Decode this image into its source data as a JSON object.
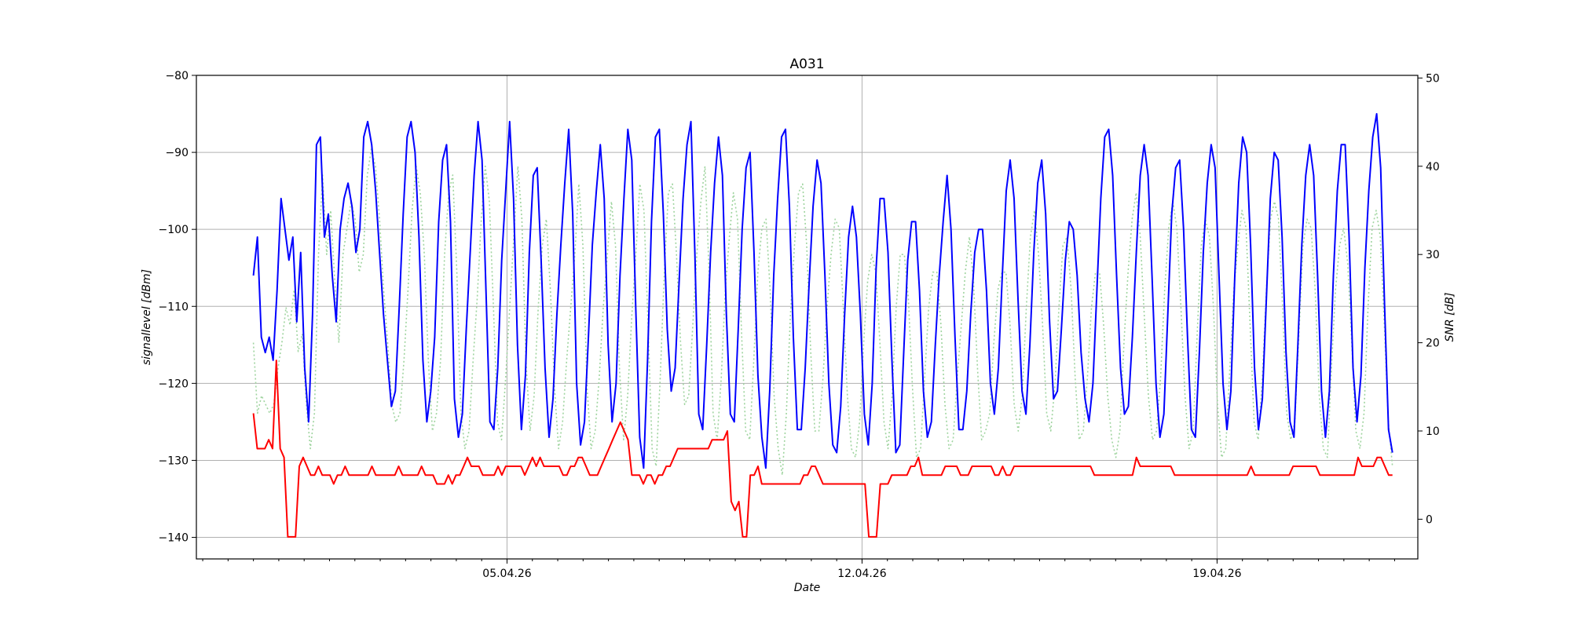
{
  "chart_data": {
    "type": "line",
    "title": "A031",
    "xlabel": "Date",
    "ylabel": "signallevel [dBm]",
    "y2label": "SNR [dB]",
    "x_start": "2026-03-31T00:00",
    "x_end": "2026-04-22T11:00",
    "xlim": [
      "2026-03-29T21:00",
      "2026-04-22T23:00"
    ],
    "x_ticks": [
      {
        "date": "2026-04-05",
        "label": "05.04.26"
      },
      {
        "date": "2026-04-12",
        "label": "12.04.26"
      },
      {
        "date": "2026-04-19",
        "label": "19.04.26"
      }
    ],
    "ylim": [
      -142.8,
      -80
    ],
    "y_ticks": [
      -140,
      -130,
      -120,
      -110,
      -100,
      -90,
      -80
    ],
    "y2lim": [
      -4.5,
      50.3
    ],
    "y2_ticks": [
      0,
      10,
      20,
      30,
      40,
      50
    ],
    "grid": true,
    "colors": {
      "signallevel": "#0000ff",
      "snr": "#9fd49f",
      "secondary": "#ff0000"
    },
    "series": [
      {
        "axis": "left",
        "style": "solid",
        "color": "#0000ff",
        "values": [
          -106,
          -101,
          -114,
          -116,
          -114,
          -117,
          -108,
          -96,
          -100,
          -104,
          -101,
          -112,
          -103,
          -118,
          -125,
          -111,
          -89,
          -88,
          -101,
          -98,
          -106,
          -112,
          -100,
          -96,
          -94,
          -97,
          -103,
          -100,
          -88,
          -86,
          -89,
          -95,
          -103,
          -111,
          -117,
          -123,
          -121,
          -110,
          -98,
          -88,
          -86,
          -90,
          -101,
          -117,
          -125,
          -121,
          -114,
          -99,
          -91,
          -89,
          -99,
          -122,
          -127,
          -124,
          -113,
          -103,
          -93,
          -86,
          -91,
          -108,
          -125,
          -126,
          -118,
          -104,
          -95,
          -86,
          -96,
          -115,
          -126,
          -119,
          -103,
          -93,
          -92,
          -104,
          -118,
          -127,
          -122,
          -111,
          -102,
          -94,
          -87,
          -98,
          -120,
          -128,
          -125,
          -114,
          -102,
          -95,
          -89,
          -96,
          -115,
          -125,
          -120,
          -106,
          -96,
          -87,
          -91,
          -110,
          -127,
          -131,
          -117,
          -99,
          -88,
          -87,
          -98,
          -113,
          -121,
          -118,
          -107,
          -96,
          -89,
          -86,
          -103,
          -124,
          -126,
          -115,
          -103,
          -94,
          -88,
          -93,
          -111,
          -124,
          -125,
          -113,
          -100,
          -92,
          -90,
          -103,
          -119,
          -127,
          -131,
          -121,
          -106,
          -96,
          -88,
          -87,
          -97,
          -114,
          -126,
          -126,
          -118,
          -107,
          -97,
          -91,
          -94,
          -106,
          -120,
          -128,
          -129,
          -123,
          -111,
          -101,
          -97,
          -101,
          -111,
          -124,
          -128,
          -120,
          -105,
          -96,
          -96,
          -103,
          -117,
          -129,
          -128,
          -116,
          -104,
          -99,
          -99,
          -108,
          -121,
          -127,
          -125,
          -115,
          -106,
          -99,
          -93,
          -100,
          -114,
          -126,
          -126,
          -121,
          -111,
          -103,
          -100,
          -100,
          -108,
          -120,
          -124,
          -118,
          -106,
          -95,
          -91,
          -96,
          -109,
          -121,
          -124,
          -115,
          -103,
          -94,
          -91,
          -98,
          -112,
          -122,
          -121,
          -113,
          -104,
          -99,
          -100,
          -106,
          -116,
          -122,
          -125,
          -120,
          -108,
          -96,
          -88,
          -87,
          -93,
          -106,
          -118,
          -124,
          -123,
          -114,
          -103,
          -93,
          -89,
          -93,
          -106,
          -120,
          -127,
          -124,
          -111,
          -98,
          -92,
          -91,
          -100,
          -114,
          -126,
          -127,
          -116,
          -103,
          -94,
          -89,
          -92,
          -106,
          -120,
          -126,
          -121,
          -106,
          -94,
          -88,
          -90,
          -102,
          -118,
          -126,
          -122,
          -109,
          -96,
          -90,
          -91,
          -101,
          -116,
          -125,
          -127,
          -115,
          -102,
          -93,
          -89,
          -93,
          -106,
          -121,
          -127,
          -121,
          -106,
          -95,
          -89,
          -89,
          -101,
          -118,
          -125,
          -119,
          -105,
          -95,
          -88,
          -85,
          -92,
          -110,
          -126,
          -129
        ]
      },
      {
        "axis": "right",
        "style": "dotted",
        "color": "#9fd49f",
        "values": [
          20,
          12,
          14,
          13,
          12,
          13,
          17,
          20,
          24,
          22,
          26,
          19,
          21,
          13,
          8,
          12,
          30,
          39,
          30,
          35,
          27,
          20,
          30,
          33,
          36,
          34,
          28,
          30,
          39,
          42,
          40,
          34,
          26,
          20,
          13,
          11,
          12,
          18,
          26,
          35,
          40,
          37,
          30,
          18,
          10,
          12,
          18,
          30,
          37,
          39,
          28,
          12,
          8,
          10,
          18,
          25,
          34,
          40,
          36,
          24,
          11,
          9,
          16,
          24,
          32,
          40,
          34,
          18,
          10,
          14,
          24,
          31,
          34,
          26,
          15,
          8,
          11,
          18,
          24,
          30,
          38,
          31,
          15,
          8,
          10,
          16,
          24,
          30,
          36,
          31,
          17,
          9,
          14,
          23,
          30,
          38,
          35,
          22,
          8,
          6,
          16,
          28,
          37,
          38,
          30,
          20,
          13,
          14,
          22,
          30,
          36,
          40,
          28,
          12,
          9,
          16,
          26,
          32,
          37,
          34,
          21,
          10,
          9,
          18,
          28,
          33,
          34,
          26,
          14,
          8,
          5,
          12,
          23,
          31,
          37,
          38,
          31,
          19,
          10,
          10,
          16,
          24,
          30,
          34,
          33,
          24,
          14,
          8,
          7,
          11,
          20,
          27,
          30,
          28,
          20,
          11,
          8,
          14,
          24,
          30,
          30,
          25,
          15,
          7,
          8,
          16,
          24,
          28,
          28,
          22,
          13,
          8,
          9,
          16,
          22,
          28,
          32,
          27,
          17,
          9,
          10,
          12,
          20,
          26,
          28,
          28,
          22,
          13,
          10,
          14,
          24,
          32,
          35,
          30,
          22,
          12,
          10,
          15,
          24,
          31,
          32,
          26,
          16,
          9,
          10,
          16,
          24,
          28,
          28,
          22,
          14,
          9,
          7,
          10,
          20,
          28,
          34,
          37,
          32,
          23,
          14,
          9,
          10,
          16,
          26,
          33,
          36,
          33,
          24,
          14,
          8,
          10,
          21,
          31,
          34,
          32,
          24,
          13,
          7,
          8,
          17,
          26,
          31,
          35,
          33,
          22,
          11,
          9,
          16,
          26,
          34,
          36,
          34,
          24,
          12,
          9,
          11,
          21,
          31,
          34,
          33,
          26,
          14,
          8,
          7,
          17,
          26,
          31,
          33,
          29,
          20,
          10,
          8,
          12,
          24,
          33,
          35,
          32,
          22,
          11,
          6
        ]
      },
      {
        "axis": "right",
        "style": "solid",
        "color": "#ff0000",
        "values": [
          12,
          8,
          8,
          8,
          9,
          8,
          18,
          8,
          7,
          -2,
          -2,
          -2,
          6,
          7,
          6,
          5,
          5,
          6,
          5,
          5,
          5,
          4,
          5,
          5,
          6,
          5,
          5,
          5,
          5,
          5,
          5,
          6,
          5,
          5,
          5,
          5,
          5,
          5,
          6,
          5,
          5,
          5,
          5,
          5,
          6,
          5,
          5,
          5,
          4,
          4,
          4,
          5,
          4,
          5,
          5,
          6,
          7,
          6,
          6,
          6,
          5,
          5,
          5,
          5,
          6,
          5,
          6,
          6,
          6,
          6,
          6,
          5,
          6,
          7,
          6,
          7,
          6,
          6,
          6,
          6,
          6,
          5,
          5,
          6,
          6,
          7,
          7,
          6,
          5,
          5,
          5,
          6,
          7,
          8,
          9,
          10,
          11,
          10,
          9,
          5,
          5,
          5,
          4,
          5,
          5,
          4,
          5,
          5,
          6,
          6,
          7,
          8,
          8,
          8,
          8,
          8,
          8,
          8,
          8,
          8,
          9,
          9,
          9,
          9,
          10,
          2,
          1,
          2,
          -2,
          -2,
          5,
          5,
          6,
          4,
          4,
          4,
          4,
          4,
          4,
          4,
          4,
          4,
          4,
          4,
          5,
          5,
          6,
          6,
          5,
          4,
          4,
          4,
          4,
          4,
          4,
          4,
          4,
          4,
          4,
          4,
          4,
          -2,
          -2,
          -2,
          4,
          4,
          4,
          5,
          5,
          5,
          5,
          5,
          6,
          6,
          7,
          5,
          5,
          5,
          5,
          5,
          5,
          6,
          6,
          6,
          6,
          5,
          5,
          5,
          6,
          6,
          6,
          6,
          6,
          6,
          5,
          5,
          6,
          5,
          5,
          6,
          6,
          6,
          6,
          6,
          6,
          6,
          6,
          6,
          6,
          6,
          6,
          6,
          6,
          6,
          6,
          6,
          6,
          6,
          6,
          6,
          5,
          5,
          5,
          5,
          5,
          5,
          5,
          5,
          5,
          5,
          5,
          7,
          6,
          6,
          6,
          6,
          6,
          6,
          6,
          6,
          6,
          5,
          5,
          5,
          5,
          5,
          5,
          5,
          5,
          5,
          5,
          5,
          5,
          5,
          5,
          5,
          5,
          5,
          5,
          5,
          5,
          6,
          5,
          5,
          5,
          5,
          5,
          5,
          5,
          5,
          5,
          5,
          6,
          6,
          6,
          6,
          6,
          6,
          6,
          5,
          5,
          5,
          5,
          5,
          5,
          5,
          5,
          5,
          5,
          7,
          6,
          6,
          6,
          6,
          7,
          7,
          6,
          5,
          5
        ]
      }
    ]
  }
}
